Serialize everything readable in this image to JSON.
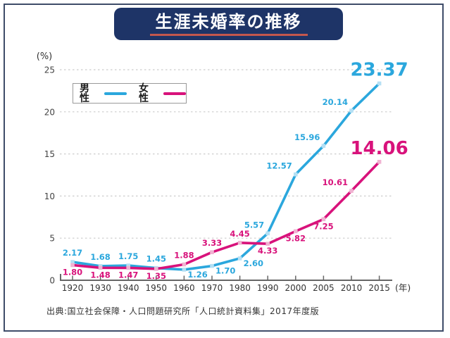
{
  "banner": {
    "title": "生涯未婚率の推移"
  },
  "legend": {
    "male_label": "男性",
    "female_label": "女性"
  },
  "source": "出典:国立社会保障・人口問題研究所「人口統計資料集」2017年度版",
  "colors": {
    "male": "#2ba7dd",
    "female": "#d8127b",
    "male_marker": "#b5e0f4",
    "female_marker": "#f0b3d2",
    "banner_bg": "#1e3467",
    "banner_underline": "#c4574d",
    "grid": "#cccccc",
    "axis": "#666666",
    "frame": "#3e4c69"
  },
  "chart_data": {
    "type": "line",
    "title": "生涯未婚率の推移",
    "x_unit": "(年)",
    "y_unit": "(%)",
    "categories": [
      "1920",
      "1930",
      "1940",
      "1950",
      "1960",
      "1970",
      "1980",
      "1990",
      "2000",
      "2005",
      "2010",
      "2015"
    ],
    "series": [
      {
        "name": "男性",
        "color": "#2ba7dd",
        "values": [
          2.17,
          1.68,
          1.75,
          1.45,
          1.26,
          1.7,
          2.6,
          5.57,
          12.57,
          15.96,
          20.14,
          23.37
        ],
        "labels": [
          "2.17",
          "1.68",
          "1.75",
          "1.45",
          "1.26",
          "1.70",
          "2.60",
          "5.57",
          "12.57",
          "15.96",
          "20.14",
          "23.37"
        ]
      },
      {
        "name": "女性",
        "color": "#d8127b",
        "values": [
          1.8,
          1.48,
          1.47,
          1.35,
          1.88,
          3.33,
          4.45,
          4.33,
          5.82,
          7.25,
          10.61,
          14.06
        ],
        "labels": [
          "1.80",
          "1.48",
          "1.47",
          "1.35",
          "1.88",
          "3.33",
          "4.45",
          "4.33",
          "5.82",
          "7.25",
          "10.61",
          "14.06"
        ]
      }
    ],
    "ylim": [
      0,
      25
    ],
    "yticks": [
      0,
      5,
      10,
      15,
      20,
      25
    ],
    "grid": "horizontal-dashed",
    "legend_position": "top-left-inside"
  }
}
